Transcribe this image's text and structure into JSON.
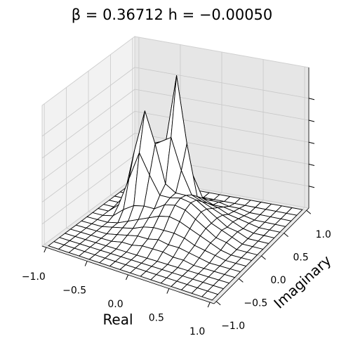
{
  "chart_data": {
    "type": "surface",
    "title": "β = 0.36712 h = −0.00050",
    "xlabel": "Real",
    "ylabel": "Imaginary",
    "x": [
      -1,
      -0.875,
      -0.75,
      -0.625,
      -0.5,
      -0.375,
      -0.25,
      -0.125,
      0,
      0.125,
      0.25,
      0.375,
      0.5,
      0.625,
      0.75,
      0.875,
      1
    ],
    "y": [
      -1,
      -0.875,
      -0.75,
      -0.625,
      -0.5,
      -0.375,
      -0.25,
      -0.125,
      0,
      0.125,
      0.25,
      0.375,
      0.5,
      0.625,
      0.75,
      0.875,
      1
    ],
    "z": [
      [
        0,
        0,
        0,
        0,
        0,
        0,
        0,
        0,
        0,
        0,
        0,
        0,
        0,
        0,
        0,
        0,
        0
      ],
      [
        0,
        0,
        0,
        0,
        0,
        0,
        0,
        0,
        0,
        0,
        0,
        0,
        0,
        0,
        0,
        0,
        0
      ],
      [
        0,
        0,
        0,
        0,
        0,
        0,
        0,
        0,
        0,
        0,
        0,
        0,
        0,
        0,
        0,
        0,
        0
      ],
      [
        0,
        0,
        0,
        0,
        0,
        0,
        0,
        0,
        0,
        0,
        0,
        0,
        0,
        0,
        0,
        0,
        0
      ],
      [
        0,
        0,
        0,
        0,
        0,
        0.001,
        0.001,
        0.002,
        0.002,
        0.002,
        0.001,
        0.001,
        0,
        0,
        0,
        0,
        0
      ],
      [
        0,
        0,
        0,
        0,
        0.001,
        0.002,
        0.003,
        0.003,
        0.004,
        0.003,
        0.003,
        0.002,
        0.001,
        0,
        0,
        0,
        0
      ],
      [
        0,
        0,
        0,
        0.001,
        0.002,
        0.003,
        0.005,
        0.006,
        0.006,
        0.006,
        0.005,
        0.003,
        0.002,
        0.001,
        0,
        0,
        0
      ],
      [
        0,
        0,
        0,
        0.001,
        0.003,
        0.005,
        0.007,
        0.009,
        0.01,
        0.009,
        0.007,
        0.005,
        0.003,
        0.001,
        0,
        0,
        0
      ],
      [
        0,
        0,
        0.001,
        0.005,
        0.008,
        0.009,
        0.009,
        0.012,
        0.013,
        0.012,
        0.009,
        0.006,
        0.003,
        0.002,
        0,
        0,
        0
      ],
      [
        0,
        0,
        0.004,
        0.017,
        0.03,
        0.021,
        0.013,
        0.013,
        0.014,
        0.013,
        0.01,
        0.006,
        0.004,
        0.002,
        0,
        0,
        0
      ],
      [
        0,
        0,
        0.006,
        0.028,
        0.047,
        0.033,
        0.016,
        0.013,
        0.013,
        0.012,
        0.009,
        0.006,
        0.003,
        0.002,
        0,
        0,
        0
      ],
      [
        0,
        0,
        0.003,
        0.016,
        0.03,
        0.032,
        0.035,
        0.021,
        0.011,
        0.009,
        0.007,
        0.005,
        0.003,
        0.001,
        0,
        0,
        0
      ],
      [
        0,
        0,
        0.001,
        0.004,
        0.009,
        0.031,
        0.061,
        0.031,
        0.008,
        0.006,
        0.005,
        0.003,
        0.002,
        0.001,
        0,
        0,
        0
      ],
      [
        0,
        0,
        0,
        0,
        0.002,
        0.014,
        0.028,
        0.015,
        0.005,
        0.003,
        0.003,
        0.002,
        0.001,
        0,
        0,
        0,
        0
      ],
      [
        0,
        0,
        0,
        0,
        0,
        0.002,
        0.003,
        0.003,
        0.002,
        0.002,
        0.001,
        0.001,
        0,
        0,
        0,
        0,
        0
      ],
      [
        0,
        0,
        0,
        0,
        0,
        0,
        0,
        0,
        0,
        0,
        0,
        0,
        0,
        0,
        0,
        0,
        0
      ],
      [
        0,
        0,
        0,
        0,
        0,
        0,
        0,
        0,
        0,
        0,
        0,
        0,
        0,
        0,
        0,
        0,
        0
      ]
    ],
    "xlim": [
      -1.05,
      1.05
    ],
    "ylim": [
      -1.05,
      1.05
    ],
    "zlim": [
      0,
      0.064
    ],
    "xticks": [
      {
        "value": -1,
        "label": "−1.0"
      },
      {
        "value": -0.5,
        "label": "−0.5"
      },
      {
        "value": 0,
        "label": "0.0"
      },
      {
        "value": 0.5,
        "label": "0.5"
      },
      {
        "value": 1,
        "label": "1.0"
      }
    ],
    "yticks": [
      {
        "value": -1,
        "label": "−1.0"
      },
      {
        "value": -0.5,
        "label": "−0.5"
      },
      {
        "value": 0,
        "label": "0.0"
      },
      {
        "value": 0.5,
        "label": "0.5"
      },
      {
        "value": 1,
        "label": "1.0"
      }
    ],
    "zticks": [
      0.01,
      0.02,
      0.03,
      0.04,
      0.05
    ],
    "grid": true,
    "color": "#ffffff",
    "edgecolor": "#000000"
  }
}
